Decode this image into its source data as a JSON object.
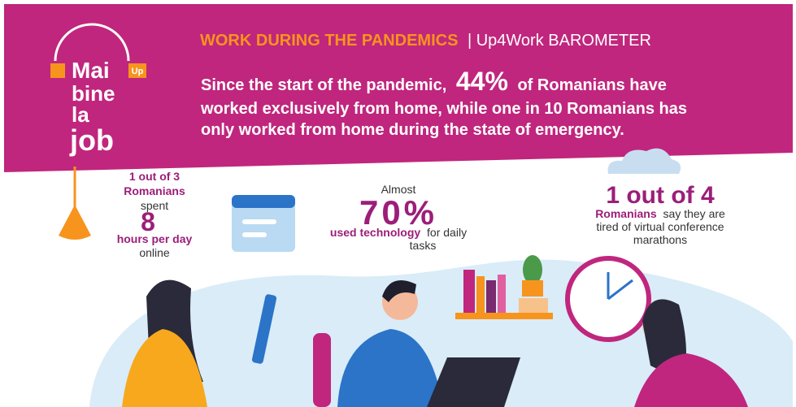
{
  "logo": {
    "line1": "Mai",
    "line2": "bine",
    "line3": "la",
    "line4": "job",
    "badge": "Up"
  },
  "header": {
    "title": "WORK DURING THE PANDEMICS",
    "subtitle": "| Up4Work BAROMETER",
    "headline": {
      "line1_start": "Since the start of the pandemic,",
      "highlight": "44%",
      "line1_end": "of Romanians have",
      "line2": "worked exclusively from home, while one in 10 Romanians has",
      "line3": "only worked from home during the state of emergency."
    }
  },
  "stats": [
    {
      "lead": "1 out of 3",
      "subject": "Romanians",
      "verb": "spent",
      "number": "8",
      "unit": "hours per day",
      "rest": "online"
    },
    {
      "lead": "Almost",
      "number": "70%",
      "subject": "used technology",
      "rest_line1": "for daily",
      "rest_line2": "tasks"
    },
    {
      "number": "1 out of 4",
      "subject": "Romanians",
      "rest_line1": "say they are",
      "rest_line2": "tired of virtual conference",
      "rest_line3": "marathons"
    }
  ]
}
